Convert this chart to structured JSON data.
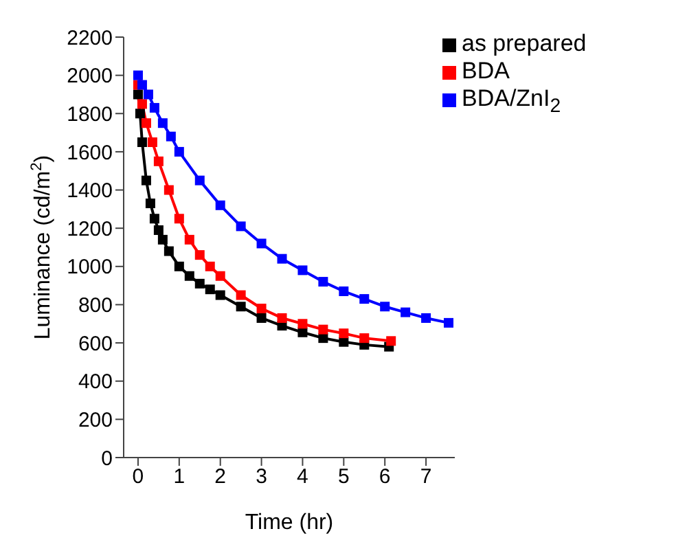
{
  "chart_data": {
    "type": "line",
    "xlabel": "Time (hr)",
    "ylabel": "Luminance (cd/m$^{2}$)",
    "xlim": [
      -0.35,
      7.7
    ],
    "xticks": [
      0,
      1,
      2,
      3,
      4,
      5,
      6,
      7
    ],
    "ylim": [
      0,
      2200
    ],
    "yticks": [
      0,
      200,
      400,
      600,
      800,
      1000,
      1200,
      1400,
      1600,
      1800,
      2000,
      2200
    ],
    "grid": false,
    "legend": "top right",
    "marker": "square",
    "line_style": "solid",
    "series": [
      {
        "name": "as prepared",
        "color": "#000000",
        "x": [
          0,
          0.05,
          0.1,
          0.2,
          0.3,
          0.4,
          0.5,
          0.6,
          0.75,
          1,
          1.25,
          1.5,
          1.75,
          2,
          2.5,
          3,
          3.5,
          4,
          4.5,
          5,
          5.5,
          6.1
        ],
        "values": [
          1900,
          1800,
          1650,
          1450,
          1330,
          1250,
          1190,
          1140,
          1080,
          1000,
          950,
          910,
          880,
          850,
          790,
          730,
          690,
          655,
          625,
          605,
          590,
          580
        ]
      },
      {
        "name": "BDA",
        "color": "#ff0000",
        "x": [
          0,
          0.1,
          0.2,
          0.35,
          0.5,
          0.75,
          1,
          1.25,
          1.5,
          1.75,
          2,
          2.5,
          3,
          3.5,
          4,
          4.5,
          5,
          5.5,
          6.15
        ],
        "values": [
          1950,
          1850,
          1750,
          1650,
          1550,
          1400,
          1250,
          1140,
          1060,
          1000,
          950,
          850,
          780,
          730,
          700,
          670,
          650,
          625,
          610
        ]
      },
      {
        "name": "BDA/ZnI$_{2}$",
        "color": "#0000ff",
        "x": [
          0,
          0.1,
          0.25,
          0.4,
          0.6,
          0.8,
          1,
          1.5,
          2,
          2.5,
          3,
          3.5,
          4,
          4.5,
          5,
          5.5,
          6,
          6.5,
          7,
          7.55
        ],
        "values": [
          2000,
          1950,
          1900,
          1830,
          1750,
          1680,
          1600,
          1450,
          1320,
          1210,
          1120,
          1040,
          980,
          920,
          870,
          830,
          790,
          760,
          730,
          705
        ]
      }
    ]
  }
}
